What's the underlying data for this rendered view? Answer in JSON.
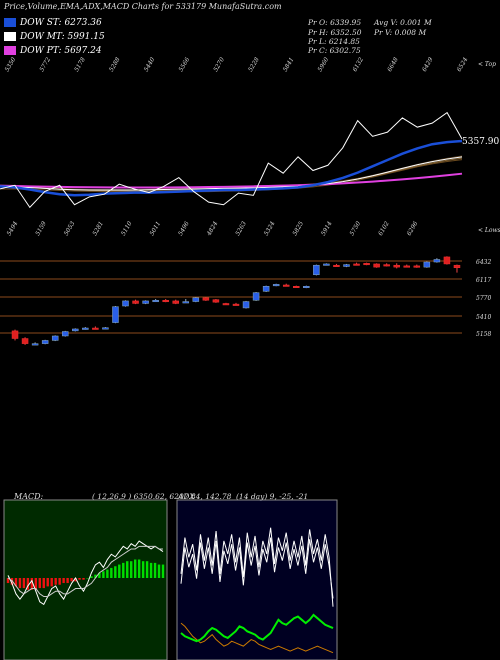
{
  "header": {
    "title": "Price,Volume,EMA,ADX,MACD Charts for 533179 MunafaSutra.com"
  },
  "legend": [
    {
      "label": "DOW ST: 6273.36",
      "color": "#1a4fd8"
    },
    {
      "label": "DOW MT: 5991.15",
      "color": "#ffffff"
    },
    {
      "label": "DOW PT: 5697.24",
      "color": "#e040e0"
    }
  ],
  "info": {
    "pr": "Pr O: 6339.95",
    "ph": "Pr H: 6352.50",
    "pl": "Pr L: 6214.85",
    "pc": "Pr C: 6302.75",
    "avgv": "Avg V: 0.001 M",
    "prv": "Pr V: 0.008 M"
  },
  "top_labels": [
    "5350",
    "5772",
    "5178",
    "5288",
    "5440",
    "5566",
    "5270",
    "5228",
    "5841",
    "5960",
    "6132",
    "6648",
    "6429",
    "6524"
  ],
  "low_labels": [
    "5494",
    "5159",
    "5053",
    "5281",
    "5110",
    "5011",
    "5496",
    "4824",
    "5263",
    "5324",
    "5825",
    "5914",
    "5750",
    "6102",
    "6296"
  ],
  "edge_labels": {
    "top": "< Top",
    "lows": "< Lows"
  },
  "ema_value_label": "5357.90",
  "price_axis_labels": [
    "6432",
    "6117",
    "5770",
    "5410",
    "5158"
  ],
  "macd": {
    "label": "MACD:",
    "values": "( 12,26,9 ) 6350.62,  6207.84,  142.78"
  },
  "adx": {
    "label": "ADX",
    "values": "(14 day) 9,  -25,  -21"
  },
  "chart_data": [
    {
      "type": "line",
      "title": "EMA",
      "series": [
        {
          "name": "DOW ST",
          "color": "#1a4fd8",
          "values": [
            5400,
            5380,
            5340,
            5290,
            5250,
            5230,
            5240,
            5260,
            5270,
            5280,
            5280,
            5290,
            5300,
            5310,
            5320,
            5330,
            5330,
            5340,
            5350,
            5360,
            5380,
            5420,
            5480,
            5560,
            5660,
            5780,
            5900,
            6020,
            6120,
            6200,
            6240,
            6260
          ]
        },
        {
          "name": "DOW MT",
          "color": "#ffffff",
          "values": [
            5390,
            5385,
            5375,
            5360,
            5345,
            5335,
            5330,
            5330,
            5330,
            5330,
            5335,
            5340,
            5345,
            5350,
            5355,
            5360,
            5365,
            5370,
            5380,
            5390,
            5400,
            5420,
            5450,
            5490,
            5540,
            5600,
            5670,
            5740,
            5810,
            5870,
            5920,
            5960
          ]
        },
        {
          "name": "DOW PT",
          "color": "#e040e0",
          "values": [
            5410,
            5405,
            5400,
            5395,
            5390,
            5385,
            5382,
            5380,
            5378,
            5377,
            5377,
            5378,
            5380,
            5383,
            5386,
            5390,
            5395,
            5400,
            5406,
            5413,
            5420,
            5430,
            5442,
            5456,
            5472,
            5490,
            5510,
            5532,
            5556,
            5582,
            5610,
            5640
          ]
        },
        {
          "name": "Price",
          "color": "#ffffff",
          "values": [
            5350,
            5420,
            5000,
            5300,
            5420,
            5050,
            5200,
            5250,
            5440,
            5350,
            5280,
            5400,
            5566,
            5300,
            5100,
            5050,
            5270,
            5228,
            5841,
            5650,
            5960,
            5700,
            5800,
            6132,
            6648,
            6350,
            6429,
            6700,
            6524,
            6600,
            6800,
            6300
          ]
        }
      ]
    },
    {
      "type": "bar",
      "title": "Candles",
      "ylim": [
        5000,
        6600
      ],
      "candles": [
        {
          "o": 5300,
          "c": 5180,
          "h": 5320,
          "l": 5150
        },
        {
          "o": 5180,
          "c": 5100,
          "h": 5200,
          "l": 5080
        },
        {
          "o": 5090,
          "c": 5100,
          "h": 5120,
          "l": 5080
        },
        {
          "o": 5100,
          "c": 5150,
          "h": 5160,
          "l": 5090
        },
        {
          "o": 5150,
          "c": 5220,
          "h": 5230,
          "l": 5140
        },
        {
          "o": 5220,
          "c": 5290,
          "h": 5300,
          "l": 5210
        },
        {
          "o": 5300,
          "c": 5330,
          "h": 5340,
          "l": 5290
        },
        {
          "o": 5340,
          "c": 5345,
          "h": 5360,
          "l": 5320
        },
        {
          "o": 5345,
          "c": 5340,
          "h": 5370,
          "l": 5330
        },
        {
          "o": 5340,
          "c": 5350,
          "h": 5360,
          "l": 5330
        },
        {
          "o": 5430,
          "c": 5680,
          "h": 5690,
          "l": 5420
        },
        {
          "o": 5690,
          "c": 5770,
          "h": 5780,
          "l": 5680
        },
        {
          "o": 5770,
          "c": 5730,
          "h": 5790,
          "l": 5720
        },
        {
          "o": 5730,
          "c": 5770,
          "h": 5780,
          "l": 5720
        },
        {
          "o": 5770,
          "c": 5780,
          "h": 5800,
          "l": 5760
        },
        {
          "o": 5780,
          "c": 5760,
          "h": 5800,
          "l": 5750
        },
        {
          "o": 5770,
          "c": 5730,
          "h": 5790,
          "l": 5720
        },
        {
          "o": 5750,
          "c": 5760,
          "h": 5800,
          "l": 5740
        },
        {
          "o": 5760,
          "c": 5820,
          "h": 5830,
          "l": 5750
        },
        {
          "o": 5820,
          "c": 5780,
          "h": 5830,
          "l": 5770
        },
        {
          "o": 5790,
          "c": 5750,
          "h": 5800,
          "l": 5740
        },
        {
          "o": 5730,
          "c": 5720,
          "h": 5740,
          "l": 5710
        },
        {
          "o": 5720,
          "c": 5710,
          "h": 5740,
          "l": 5700
        },
        {
          "o": 5660,
          "c": 5760,
          "h": 5770,
          "l": 5650
        },
        {
          "o": 5780,
          "c": 5900,
          "h": 5910,
          "l": 5770
        },
        {
          "o": 5920,
          "c": 6000,
          "h": 6010,
          "l": 5910
        },
        {
          "o": 6010,
          "c": 6030,
          "h": 6040,
          "l": 6000
        },
        {
          "o": 6020,
          "c": 6010,
          "h": 6040,
          "l": 6000
        },
        {
          "o": 6000,
          "c": 5990,
          "h": 6010,
          "l": 5980
        },
        {
          "o": 5980,
          "c": 6000,
          "h": 6010,
          "l": 5970
        },
        {
          "o": 6180,
          "c": 6330,
          "h": 6340,
          "l": 6170
        },
        {
          "o": 6340,
          "c": 6350,
          "h": 6360,
          "l": 6330
        },
        {
          "o": 6330,
          "c": 6320,
          "h": 6350,
          "l": 6310
        },
        {
          "o": 6310,
          "c": 6340,
          "h": 6350,
          "l": 6300
        },
        {
          "o": 6350,
          "c": 6340,
          "h": 6370,
          "l": 6330
        },
        {
          "o": 6360,
          "c": 6340,
          "h": 6370,
          "l": 6330
        },
        {
          "o": 6350,
          "c": 6300,
          "h": 6360,
          "l": 6290
        },
        {
          "o": 6340,
          "c": 6330,
          "h": 6360,
          "l": 6310
        },
        {
          "o": 6330,
          "c": 6300,
          "h": 6360,
          "l": 6280
        },
        {
          "o": 6320,
          "c": 6310,
          "h": 6340,
          "l": 6300
        },
        {
          "o": 6320,
          "c": 6300,
          "h": 6340,
          "l": 6290
        },
        {
          "o": 6300,
          "c": 6380,
          "h": 6390,
          "l": 6290
        },
        {
          "o": 6380,
          "c": 6420,
          "h": 6440,
          "l": 6370
        },
        {
          "o": 6460,
          "c": 6350,
          "h": 6470,
          "l": 6340
        },
        {
          "o": 6330,
          "c": 6290,
          "h": 6340,
          "l": 6214
        }
      ]
    },
    {
      "type": "bar",
      "title": "MACD",
      "histogram": [
        -3,
        -4,
        -5,
        -6,
        -6,
        -7,
        -7,
        -7,
        -6,
        -6,
        -5,
        -5,
        -4,
        -4,
        -3,
        -3,
        -2,
        -2,
        -1,
        -1,
        0,
        1,
        2,
        3,
        4,
        5,
        6,
        7,
        8,
        9,
        10,
        10,
        11,
        11,
        10,
        10,
        9,
        9,
        8,
        8
      ],
      "macd_line": [
        1,
        -2,
        -6,
        -8,
        -6,
        -3,
        -1,
        -5,
        -9,
        -10,
        -7,
        -4,
        -3,
        -6,
        -8,
        -5,
        -2,
        0,
        -3,
        -5,
        -2,
        2,
        5,
        6,
        4,
        7,
        9,
        8,
        10,
        12,
        11,
        13,
        12,
        14,
        13,
        12,
        11,
        12,
        11,
        10
      ],
      "signal_line": [
        0,
        -1,
        -3,
        -5,
        -6,
        -5,
        -4,
        -4,
        -6,
        -7,
        -7,
        -6,
        -5,
        -5,
        -6,
        -6,
        -5,
        -4,
        -4,
        -4,
        -3,
        -2,
        0,
        2,
        3,
        4,
        6,
        7,
        8,
        9,
        10,
        11,
        11,
        12,
        12,
        12,
        12,
        12,
        11,
        11
      ]
    },
    {
      "type": "line",
      "title": "ADX",
      "series": [
        {
          "name": "+DI",
          "color": "#ffffff",
          "values": [
            50,
            72,
            60,
            68,
            52,
            74,
            58,
            72,
            55,
            76,
            50,
            70,
            62,
            74,
            57,
            72,
            48,
            75,
            60,
            73,
            54,
            70,
            62,
            78,
            56,
            72,
            64,
            75,
            58,
            70,
            60,
            73,
            55,
            77,
            62,
            71,
            58,
            74,
            60,
            30
          ]
        },
        {
          "name": "-DI",
          "color": "#ffffff",
          "values": [
            44,
            66,
            54,
            62,
            47,
            69,
            53,
            66,
            50,
            70,
            45,
            64,
            56,
            68,
            52,
            66,
            43,
            69,
            55,
            67,
            49,
            65,
            57,
            72,
            51,
            66,
            58,
            69,
            53,
            65,
            55,
            67,
            50,
            71,
            57,
            66,
            53,
            68,
            55,
            35
          ]
        },
        {
          "name": "ADX",
          "color": "#00ee00",
          "values": [
            14,
            12,
            11,
            10,
            9,
            10,
            12,
            15,
            17,
            16,
            14,
            12,
            11,
            13,
            15,
            18,
            17,
            15,
            14,
            13,
            11,
            10,
            12,
            14,
            18,
            22,
            20,
            19,
            21,
            23,
            24,
            22,
            20,
            22,
            25,
            23,
            21,
            19,
            18,
            17
          ]
        },
        {
          "name": "DX",
          "color": "#cc7a00",
          "values": [
            20,
            18,
            15,
            12,
            10,
            8,
            9,
            11,
            13,
            10,
            8,
            6,
            7,
            9,
            8,
            7,
            6,
            8,
            10,
            9,
            7,
            6,
            5,
            4,
            5,
            6,
            5,
            4,
            3,
            4,
            5,
            4,
            3,
            4,
            5,
            6,
            5,
            4,
            3,
            2
          ]
        }
      ]
    }
  ]
}
